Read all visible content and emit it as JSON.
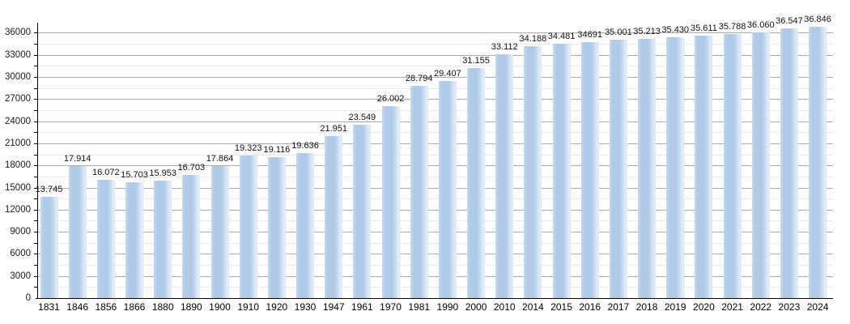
{
  "chart_data": {
    "type": "bar",
    "title": "",
    "xlabel": "",
    "ylabel": "",
    "categories": [
      "1831",
      "1846",
      "1856",
      "1866",
      "1880",
      "1890",
      "1900",
      "1910",
      "1920",
      "1930",
      "1947",
      "1961",
      "1970",
      "1981",
      "1990",
      "2000",
      "2010",
      "2014",
      "2015",
      "2016",
      "2017",
      "2018",
      "2019",
      "2020",
      "2021",
      "2022",
      "2023",
      "2024"
    ],
    "values": [
      13745,
      17914,
      16072,
      15703,
      15953,
      16703,
      17864,
      19323,
      19116,
      19636,
      21951,
      23549,
      26002,
      28794,
      29407,
      31155,
      33112,
      34188,
      34481,
      34691,
      35001,
      35213,
      35430,
      35611,
      35788,
      36060,
      36547,
      36846
    ],
    "value_labels": [
      "13.745",
      "17.914",
      "16.072",
      "15.703",
      "15.953",
      "16.703",
      "17.864",
      "19.323",
      "19.116",
      "19.636",
      "21.951",
      "23.549",
      "26.002",
      "28.794",
      "29.407",
      "31.155",
      "33.112",
      "34.188",
      "34.481",
      "34691",
      "35.001",
      "35.213",
      "35.430",
      "35.611",
      "35.788",
      "36.060",
      "36.547",
      "36.846"
    ],
    "ylim": [
      0,
      37000
    ],
    "y_major_ticks": [
      0,
      3000,
      6000,
      9000,
      12000,
      15000,
      18000,
      21000,
      24000,
      27000,
      30000,
      33000,
      36000
    ],
    "y_minor_step": 1500,
    "grid": "horizontal major+minor",
    "legend": "none",
    "colors": {
      "bar_fill": "#b0cbe8",
      "bar_highlight": "#e4eef8",
      "grid_major": "#ababab",
      "grid_minor": "#e9e9e9",
      "axis": "#000000",
      "text": "#1a1a1a",
      "background": "#ffffff"
    }
  }
}
